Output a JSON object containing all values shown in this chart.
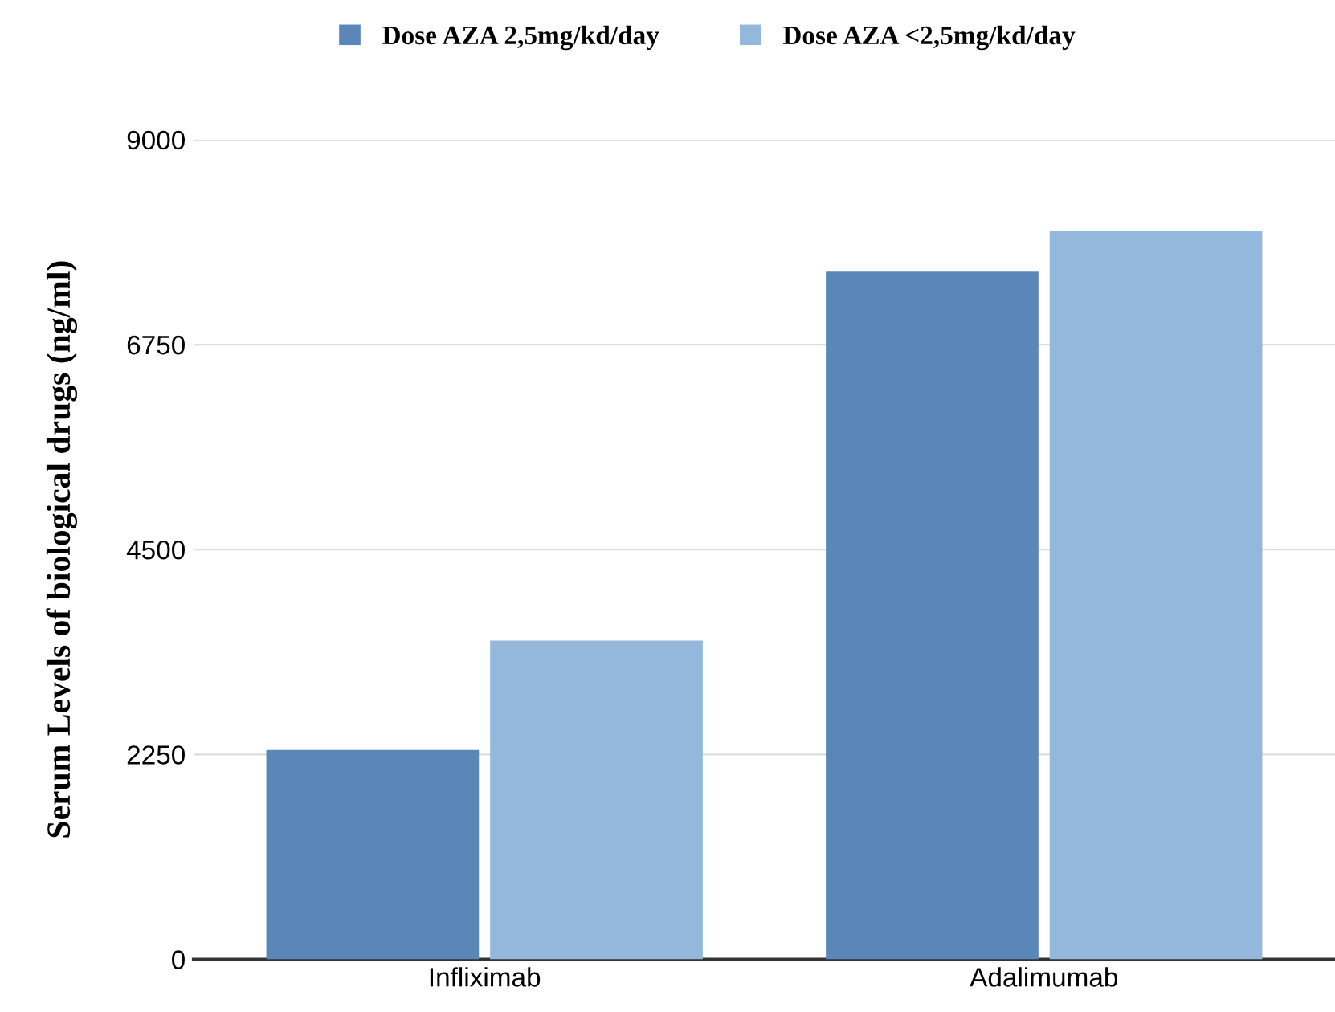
{
  "chart_data": {
    "type": "bar",
    "ylabel": "Serum Levels of biological drugs (ng/ml)",
    "categories": [
      "Infliximab",
      "Adalimumab"
    ],
    "series": [
      {
        "name": "Dose AZA 2,5mg/kd/day",
        "color": "#5b86b8",
        "values": [
          2300,
          7550
        ]
      },
      {
        "name": "Dose AZA <2,5mg/kd/day",
        "color": "#93b8dc",
        "values": [
          3500,
          8000
        ]
      }
    ],
    "ylim": [
      0,
      9000
    ],
    "yticks": [
      0,
      2250,
      4500,
      6750,
      9000
    ],
    "grid": "y",
    "legend": "top"
  }
}
